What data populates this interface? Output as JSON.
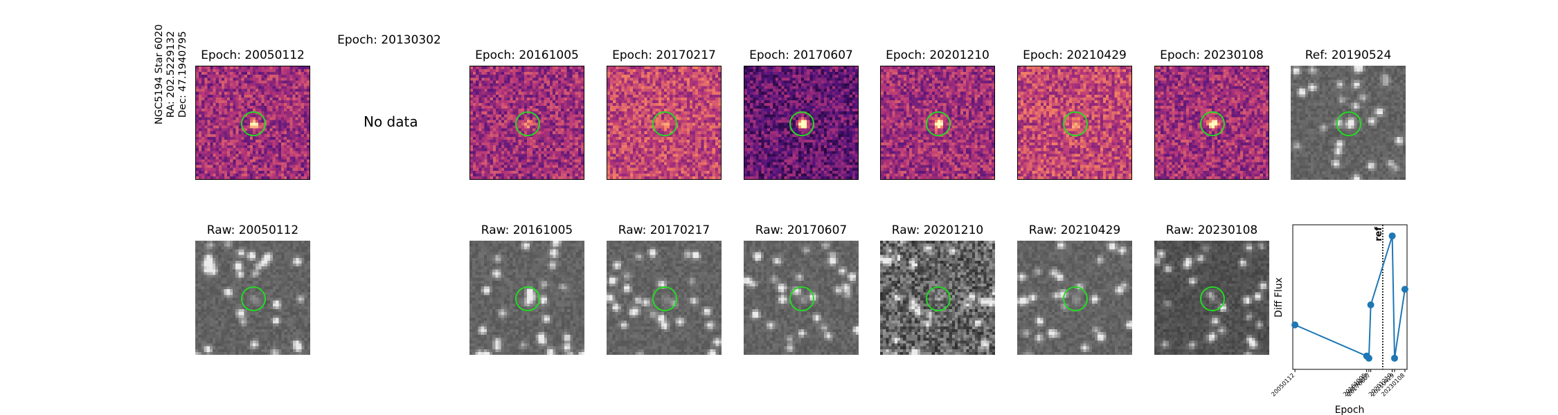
{
  "star": {
    "name": "NGC5194 Star 6020",
    "ra": "RA: 202.5229132",
    "dec": "Dec: 47.1940795"
  },
  "top_titles": [
    "Epoch: 20050112",
    "Epoch: 20130302",
    "Epoch: 20161005",
    "Epoch: 20170217",
    "Epoch: 20170607",
    "Epoch: 20201210",
    "Epoch: 20210429",
    "Epoch: 20230108",
    "Ref: 20190524"
  ],
  "no_data_text": "No data",
  "raw_titles": [
    "Raw: 20050112",
    "Raw: 20161005",
    "Raw: 20170217",
    "Raw: 20170607",
    "Raw: 20201210",
    "Raw: 20210429",
    "Raw: 20230108"
  ],
  "colors": {
    "aperture": "#22dd22",
    "series": "#1f77b4",
    "ref_line": "#000000"
  },
  "chart_data": {
    "type": "line",
    "xlabel": "Epoch",
    "ylabel": "Diff Flux",
    "categories": [
      "20050112",
      "20161005",
      "20170217",
      "20170607",
      "20201210",
      "20210429",
      "20230108"
    ],
    "values": [
      0.4,
      0.12,
      0.1,
      0.58,
      1.2,
      0.1,
      0.72
    ],
    "x_positions": [
      "20050112",
      "20161005",
      "20170217",
      "20170607",
      "20201210",
      "20210429",
      "20230108"
    ],
    "ref_marker": {
      "label": "ref",
      "date": "20190524"
    },
    "ylim": [
      0,
      1.3
    ],
    "grid": false
  }
}
